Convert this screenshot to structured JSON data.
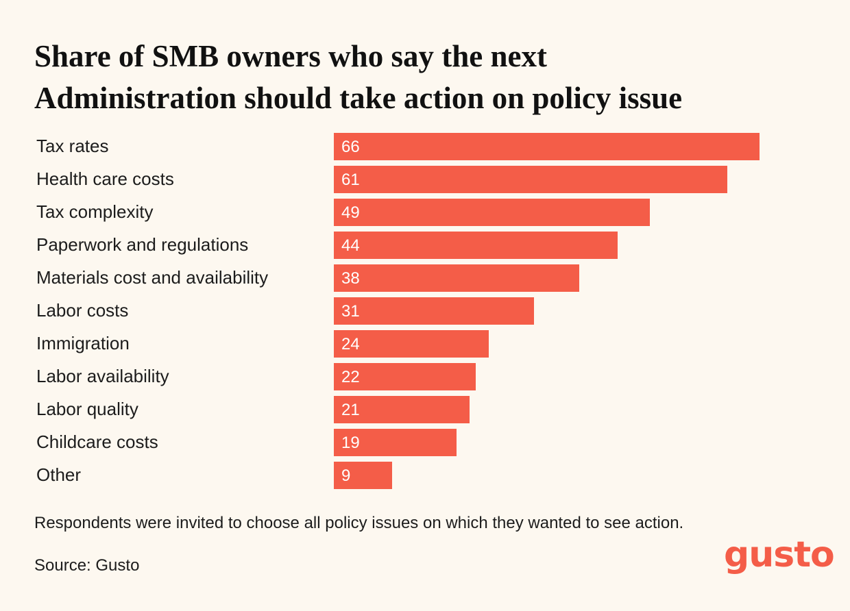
{
  "title": {
    "line1": "Share of SMB owners who say the next",
    "line2": "Administration should take action on policy issue"
  },
  "chart_data": {
    "type": "bar",
    "orientation": "horizontal",
    "categories": [
      "Tax rates",
      "Health care costs",
      "Tax complexity",
      "Paperwork and regulations",
      "Materials cost and availability",
      "Labor costs",
      "Immigration",
      "Labor availability",
      "Labor quality",
      "Childcare costs",
      "Other"
    ],
    "values": [
      66,
      61,
      49,
      44,
      38,
      31,
      24,
      22,
      21,
      19,
      9
    ],
    "value_labels": [
      "66",
      "61",
      "49",
      "44",
      "38",
      "31",
      "24",
      "22",
      "21",
      "19",
      "9"
    ],
    "xlim": [
      0,
      66
    ],
    "bar_color": "#f45d48",
    "grid": false,
    "legend": "none"
  },
  "footer": {
    "note": "Respondents were invited to choose all policy issues on which they wanted to see action.",
    "source": "Source: Gusto"
  },
  "logo": {
    "text": "gusto",
    "color": "#f45d48"
  }
}
